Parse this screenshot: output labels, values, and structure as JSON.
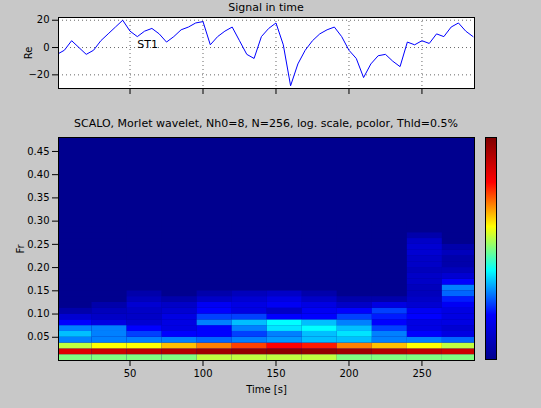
{
  "chart_data": [
    {
      "type": "line",
      "title": "Signal in time",
      "y_label": "Re",
      "x": [
        0,
        5,
        10,
        15,
        20,
        25,
        30,
        35,
        40,
        45,
        50,
        55,
        60,
        65,
        70,
        75,
        80,
        85,
        90,
        95,
        100,
        105,
        110,
        115,
        120,
        125,
        130,
        135,
        140,
        145,
        150,
        155,
        160,
        165,
        170,
        175,
        180,
        185,
        190,
        195,
        200,
        205,
        210,
        215,
        220,
        225,
        230,
        235,
        240,
        245,
        250,
        255,
        260,
        265,
        270,
        275,
        280,
        285
      ],
      "series": [
        {
          "color": "#0000ff",
          "values": [
            -5,
            -2,
            5,
            0,
            -5,
            -2,
            5,
            10,
            15,
            20,
            12,
            8,
            12,
            14,
            10,
            4,
            8,
            13,
            15,
            18,
            19,
            2,
            8,
            12,
            15,
            5,
            -5,
            -8,
            8,
            14,
            18,
            2,
            -28,
            -12,
            -2,
            5,
            10,
            13,
            15,
            8,
            -2,
            -8,
            -22,
            -12,
            -6,
            -5,
            -10,
            -14,
            4,
            2,
            5,
            3,
            10,
            8,
            15,
            18,
            12,
            8
          ]
        }
      ],
      "xlim": [
        1,
        286
      ],
      "xticks": [
        50,
        100,
        150,
        200,
        250
      ],
      "ylim": [
        -30,
        22
      ],
      "yticks": [
        -20,
        0,
        20
      ],
      "grid": true,
      "tick_labels": "y",
      "annotations": [
        {
          "text": "ST1",
          "x": 62,
          "y": 2
        }
      ]
    },
    {
      "type": "heatmap",
      "title": "SCALO, Morlet wavelet, Nh0=8, N=256, log. scale, pcolor, Thld=0.5%",
      "x_label": "Time [s]",
      "y_label": "Fr",
      "x_edges": [
        0,
        24,
        48,
        72,
        96,
        120,
        144,
        168,
        192,
        216,
        240,
        264,
        286
      ],
      "y_edges": [
        0,
        0.0125,
        0.025,
        0.0375,
        0.05,
        0.0625,
        0.075,
        0.0875,
        0.1,
        0.1125,
        0.125,
        0.1375,
        0.15,
        0.1625,
        0.175,
        0.1875,
        0.2,
        0.2125,
        0.225,
        0.2375,
        0.25,
        0.2625,
        0.275,
        0.2875,
        0.3
      ],
      "cells": [
        [
          0.5,
          0.5,
          0.5,
          0.5,
          0.55,
          0.55,
          0.55,
          0.55,
          0.5,
          0.5,
          0.5,
          0.5
        ],
        [
          0.85,
          0.88,
          0.9,
          0.92,
          0.95,
          0.97,
          0.98,
          0.97,
          0.95,
          0.92,
          0.9,
          0.88
        ],
        [
          0.55,
          0.6,
          0.6,
          0.65,
          0.7,
          0.75,
          0.8,
          0.78,
          0.7,
          0.65,
          0.6,
          0.55
        ],
        [
          0.3,
          0.3,
          0.3,
          0.3,
          0.28,
          0.3,
          0.32,
          0.35,
          0.35,
          0.3,
          0.3,
          0.28
        ],
        [
          0.35,
          0.3,
          0.25,
          0.2,
          0.2,
          0.25,
          0.3,
          0.35,
          0.38,
          0.3,
          0.2,
          0.15
        ],
        [
          0.3,
          0.3,
          0.2,
          0.15,
          0.2,
          0.3,
          0.38,
          0.4,
          0.35,
          0.25,
          0.15,
          0.12
        ],
        [
          0.2,
          0.15,
          0.12,
          0.15,
          0.3,
          0.35,
          0.4,
          0.35,
          0.3,
          0.2,
          0.15,
          0.15
        ],
        [
          0.12,
          0.1,
          0.1,
          0.15,
          0.25,
          0.25,
          0.2,
          0.2,
          0.25,
          0.22,
          0.2,
          0.15
        ],
        [
          0.05,
          0.08,
          0.1,
          0.12,
          0.2,
          0.15,
          0.1,
          0.18,
          0.2,
          0.25,
          0.18,
          0.15
        ],
        [
          0,
          0.05,
          0.12,
          0.1,
          0.18,
          0.15,
          0.18,
          0.15,
          0.1,
          0.15,
          0.12,
          0.18
        ],
        [
          0,
          0,
          0.08,
          0.05,
          0.1,
          0.12,
          0.15,
          0.1,
          0.05,
          0.05,
          0.1,
          0.22
        ],
        [
          0,
          0,
          0.05,
          0,
          0.05,
          0.08,
          0.1,
          0.05,
          0,
          0,
          0.08,
          0.28
        ],
        [
          0,
          0,
          0,
          0,
          0,
          0,
          0,
          0,
          0,
          0,
          0.08,
          0.3
        ],
        [
          0,
          0,
          0,
          0,
          0,
          0,
          0,
          0,
          0,
          0,
          0.1,
          0.2
        ],
        [
          0,
          0,
          0,
          0,
          0,
          0,
          0,
          0,
          0,
          0,
          0.1,
          0.12
        ],
        [
          0,
          0,
          0,
          0,
          0,
          0,
          0,
          0,
          0,
          0,
          0.08,
          0.08
        ],
        [
          0,
          0,
          0,
          0,
          0,
          0,
          0,
          0,
          0,
          0,
          0.1,
          0.05
        ],
        [
          0,
          0,
          0,
          0,
          0,
          0,
          0,
          0,
          0,
          0,
          0.1,
          0.05
        ],
        [
          0,
          0,
          0,
          0,
          0,
          0,
          0,
          0,
          0,
          0,
          0.12,
          0.08
        ],
        [
          0,
          0,
          0,
          0,
          0,
          0,
          0,
          0,
          0,
          0,
          0.12,
          0.05
        ],
        [
          0,
          0,
          0,
          0,
          0,
          0,
          0,
          0,
          0,
          0,
          0.1,
          0
        ],
        [
          0,
          0,
          0,
          0,
          0,
          0,
          0,
          0,
          0,
          0,
          0.05,
          0
        ],
        [
          0,
          0,
          0,
          0,
          0,
          0,
          0,
          0,
          0,
          0,
          0,
          0
        ],
        [
          0,
          0,
          0,
          0,
          0,
          0,
          0,
          0,
          0,
          0,
          0,
          0
        ]
      ],
      "color_range": [
        0,
        1
      ],
      "xlim": [
        1,
        286
      ],
      "xticks": [
        50,
        100,
        150,
        200,
        250
      ],
      "ylim": [
        0,
        0.48
      ],
      "yticks": [
        0.05,
        0.1,
        0.15,
        0.2,
        0.25,
        0.3,
        0.35,
        0.4,
        0.45
      ],
      "grid": false
    }
  ]
}
